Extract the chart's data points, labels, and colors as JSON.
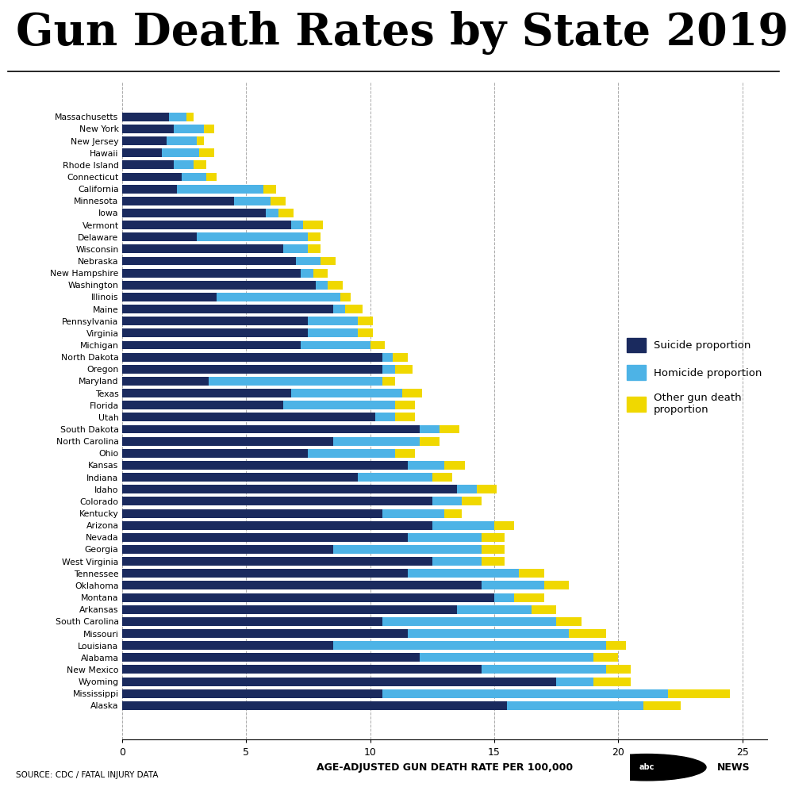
{
  "title": "Gun Death Rates by State 2019",
  "xlabel": "AGE-ADJUSTED GUN DEATH RATE PER 100,000",
  "source": "SOURCE: CDC / FATAL INJURY DATA",
  "colors": {
    "suicide": "#1a2a5e",
    "homicide": "#4db3e6",
    "other": "#f0d800"
  },
  "states": [
    "Massachusetts",
    "New York",
    "New Jersey",
    "Hawaii",
    "Rhode Island",
    "Connecticut",
    "California",
    "Minnesota",
    "Iowa",
    "Vermont",
    "Delaware",
    "Wisconsin",
    "Nebraska",
    "New Hampshire",
    "Washington",
    "Illinois",
    "Maine",
    "Pennsylvania",
    "Virginia",
    "Michigan",
    "North Dakota",
    "Oregon",
    "Maryland",
    "Texas",
    "Florida",
    "Utah",
    "South Dakota",
    "North Carolina",
    "Ohio",
    "Kansas",
    "Indiana",
    "Idaho",
    "Colorado",
    "Kentucky",
    "Arizona",
    "Nevada",
    "Georgia",
    "West Virginia",
    "Tennessee",
    "Oklahoma",
    "Montana",
    "Arkansas",
    "South Carolina",
    "Missouri",
    "Louisiana",
    "Alabama",
    "New Mexico",
    "Wyoming",
    "Mississippi",
    "Alaska"
  ],
  "suicide": [
    1.9,
    2.1,
    1.8,
    1.6,
    2.1,
    2.4,
    2.2,
    4.5,
    5.8,
    6.8,
    3.0,
    6.5,
    7.0,
    7.2,
    7.8,
    3.8,
    8.5,
    7.5,
    7.5,
    7.2,
    10.5,
    10.5,
    3.5,
    6.8,
    6.5,
    10.2,
    12.0,
    8.5,
    7.5,
    11.5,
    9.5,
    13.5,
    12.5,
    10.5,
    12.5,
    11.5,
    8.5,
    12.5,
    11.5,
    14.5,
    15.0,
    13.5,
    10.5,
    11.5,
    8.5,
    12.0,
    14.5,
    17.5,
    10.5,
    15.5
  ],
  "homicide": [
    0.7,
    1.2,
    1.2,
    1.5,
    0.8,
    1.0,
    3.5,
    1.5,
    0.5,
    0.5,
    4.5,
    1.0,
    1.0,
    0.5,
    0.5,
    5.0,
    0.5,
    2.0,
    2.0,
    2.8,
    0.4,
    0.5,
    7.0,
    4.5,
    4.5,
    0.8,
    0.8,
    3.5,
    3.5,
    1.5,
    3.0,
    0.8,
    1.2,
    2.5,
    2.5,
    3.0,
    6.0,
    2.0,
    4.5,
    2.5,
    0.8,
    3.0,
    7.0,
    6.5,
    11.0,
    7.0,
    5.0,
    1.5,
    11.5,
    5.5
  ],
  "other": [
    0.3,
    0.4,
    0.3,
    0.6,
    0.5,
    0.4,
    0.5,
    0.6,
    0.6,
    0.8,
    0.5,
    0.5,
    0.6,
    0.6,
    0.6,
    0.4,
    0.7,
    0.6,
    0.6,
    0.6,
    0.6,
    0.7,
    0.5,
    0.8,
    0.8,
    0.8,
    0.8,
    0.8,
    0.8,
    0.8,
    0.8,
    0.8,
    0.8,
    0.7,
    0.8,
    0.9,
    0.9,
    0.9,
    1.0,
    1.0,
    1.2,
    1.0,
    1.0,
    1.5,
    0.8,
    1.0,
    1.0,
    1.5,
    2.5,
    1.5
  ],
  "xlim": [
    0,
    26
  ],
  "xticks": [
    0,
    5,
    10,
    15,
    20,
    25
  ],
  "grid_color": "#aaaaaa"
}
